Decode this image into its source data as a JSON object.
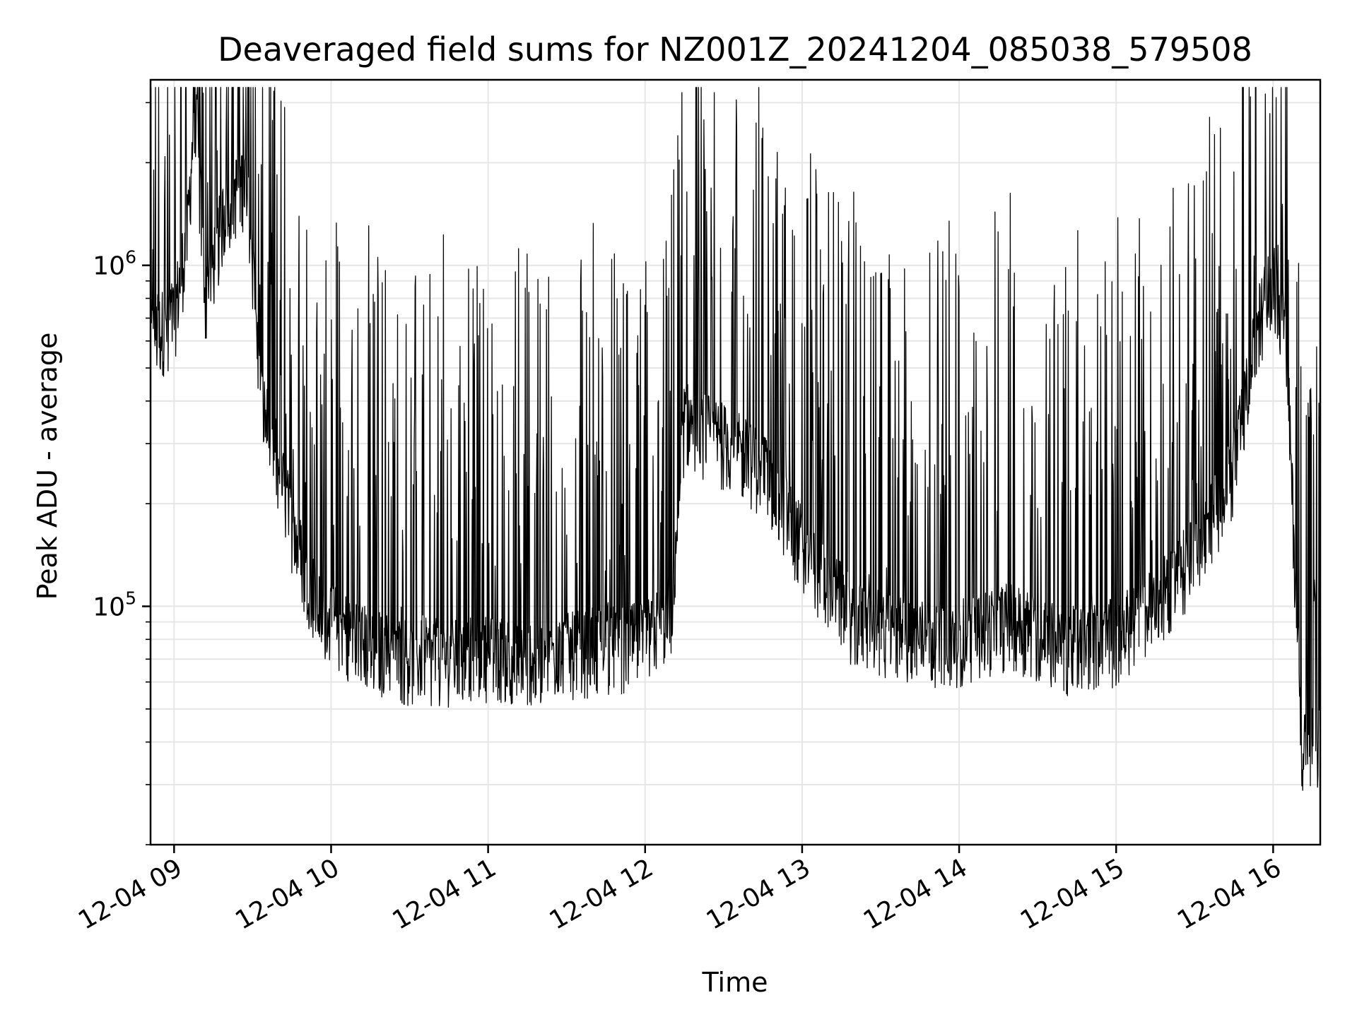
{
  "chart_data": {
    "type": "line",
    "title": "Deaveraged field sums for NZ001Z_20241204_085038_579508",
    "xlabel": "Time",
    "ylabel": "Peak ADU - average",
    "yscale": "log",
    "ylim": [
      20000,
      3500000
    ],
    "xlim": [
      "2024-12-04 08:51",
      "2024-12-04 16:18"
    ],
    "x_ticks": [
      {
        "value": "2024-12-04 09:00",
        "label": "12-04 09"
      },
      {
        "value": "2024-12-04 10:00",
        "label": "12-04 10"
      },
      {
        "value": "2024-12-04 11:00",
        "label": "12-04 11"
      },
      {
        "value": "2024-12-04 12:00",
        "label": "12-04 12"
      },
      {
        "value": "2024-12-04 13:00",
        "label": "12-04 13"
      },
      {
        "value": "2024-12-04 14:00",
        "label": "12-04 14"
      },
      {
        "value": "2024-12-04 15:00",
        "label": "12-04 15"
      },
      {
        "value": "2024-12-04 16:00",
        "label": "12-04 16"
      }
    ],
    "y_ticks": [
      {
        "value": 100000,
        "base": "10",
        "exp": "5"
      },
      {
        "value": 1000000,
        "base": "10",
        "exp": "6"
      }
    ],
    "grid": true,
    "color": "#000000",
    "series": [
      {
        "points": [
          [
            "2024-12-04 08:51",
            600000
          ],
          [
            "2024-12-04 09:00",
            700000
          ],
          [
            "2024-12-04 09:05",
            1200000
          ],
          [
            "2024-12-04 09:08",
            3000000
          ],
          [
            "2024-12-04 09:12",
            800000
          ],
          [
            "2024-12-04 09:20",
            1500000
          ],
          [
            "2024-12-04 09:28",
            1800000
          ],
          [
            "2024-12-04 09:33",
            400000
          ],
          [
            "2024-12-04 09:40",
            250000
          ],
          [
            "2024-12-04 09:47",
            150000
          ],
          [
            "2024-12-04 09:55",
            100000
          ],
          [
            "2024-12-04 10:00",
            90000
          ],
          [
            "2024-12-04 10:15",
            75000
          ],
          [
            "2024-12-04 10:30",
            70000
          ],
          [
            "2024-12-04 10:45",
            70000
          ],
          [
            "2024-12-04 11:00",
            72000
          ],
          [
            "2024-12-04 11:20",
            70000
          ],
          [
            "2024-12-04 11:40",
            75000
          ],
          [
            "2024-12-04 12:00",
            78000
          ],
          [
            "2024-12-04 12:10",
            95000
          ],
          [
            "2024-12-04 12:15",
            350000
          ],
          [
            "2024-12-04 12:30",
            300000
          ],
          [
            "2024-12-04 12:45",
            250000
          ],
          [
            "2024-12-04 13:00",
            150000
          ],
          [
            "2024-12-04 13:20",
            90000
          ],
          [
            "2024-12-04 13:40",
            80000
          ],
          [
            "2024-12-04 14:00",
            80000
          ],
          [
            "2024-12-04 14:20",
            90000
          ],
          [
            "2024-12-04 14:40",
            75000
          ],
          [
            "2024-12-04 15:00",
            80000
          ],
          [
            "2024-12-04 15:15",
            100000
          ],
          [
            "2024-12-04 15:30",
            140000
          ],
          [
            "2024-12-04 15:45",
            250000
          ],
          [
            "2024-12-04 15:55",
            700000
          ],
          [
            "2024-12-04 16:00",
            900000
          ],
          [
            "2024-12-04 16:05",
            600000
          ],
          [
            "2024-12-04 16:08",
            150000
          ],
          [
            "2024-12-04 16:11",
            40000
          ],
          [
            "2024-12-04 16:18",
            38000
          ]
        ]
      }
    ]
  }
}
